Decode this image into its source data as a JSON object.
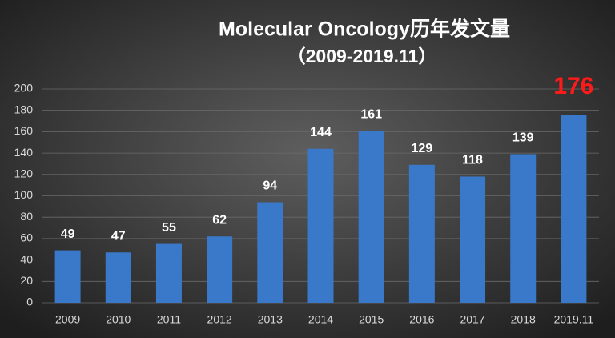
{
  "chart_data": {
    "type": "bar",
    "title": "Molecular Oncology历年发文量",
    "subtitle": "（2009-2019.11）",
    "categories": [
      "2009",
      "2010",
      "2011",
      "2012",
      "2013",
      "2014",
      "2015",
      "2016",
      "2017",
      "2018",
      "2019.11"
    ],
    "values": [
      49,
      47,
      55,
      62,
      94,
      144,
      161,
      129,
      118,
      139,
      176
    ],
    "color": "#3a78c9",
    "value_label_colors": [
      "#ffffff",
      "#ffffff",
      "#ffffff",
      "#ffffff",
      "#ffffff",
      "#ffffff",
      "#ffffff",
      "#ffffff",
      "#ffffff",
      "#ffffff",
      "#ff1a1a"
    ],
    "ylim": [
      0,
      200
    ],
    "yticks": [
      0,
      20,
      40,
      60,
      80,
      100,
      120,
      140,
      160,
      180,
      200
    ],
    "grid": true
  }
}
